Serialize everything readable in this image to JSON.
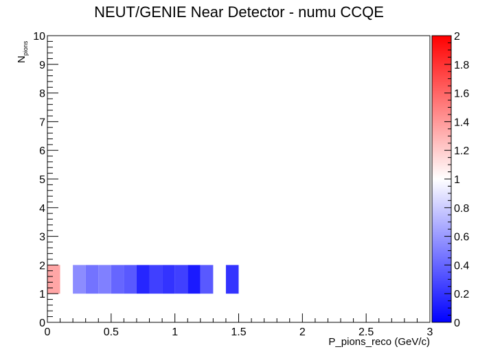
{
  "chart_data": {
    "type": "heatmap",
    "title": "NEUT/GENIE Near Detector - numu CCQE",
    "xlabel": "P_pions_reco (GeV/c)",
    "ylabel": {
      "base": "N",
      "subscript": "pions"
    },
    "xlim": [
      0,
      3
    ],
    "ylim": [
      0,
      10
    ],
    "x_ticks": [
      "0",
      "0.5",
      "1",
      "1.5",
      "2",
      "2.5",
      "3"
    ],
    "y_ticks": [
      "0",
      "1",
      "2",
      "3",
      "4",
      "5",
      "6",
      "7",
      "8",
      "9",
      "10"
    ],
    "z_range": [
      0,
      2
    ],
    "colorbar_ticks": [
      "0",
      "0.2",
      "0.4",
      "0.6",
      "0.8",
      "1",
      "1.2",
      "1.4",
      "1.6",
      "1.8",
      "2"
    ],
    "colormap": {
      "low": "#0000ff",
      "mid": "#ffffff",
      "high": "#ff0000"
    },
    "bin_width_x": 0.1,
    "bins": [
      {
        "x0": 0.0,
        "x1": 0.1,
        "y0": 1,
        "y1": 2,
        "z": 1.35
      },
      {
        "x0": 0.2,
        "x1": 0.3,
        "y0": 1,
        "y1": 2,
        "z": 0.55
      },
      {
        "x0": 0.3,
        "x1": 0.4,
        "y0": 1,
        "y1": 2,
        "z": 0.45
      },
      {
        "x0": 0.4,
        "x1": 0.5,
        "y0": 1,
        "y1": 2,
        "z": 0.5
      },
      {
        "x0": 0.5,
        "x1": 0.6,
        "y0": 1,
        "y1": 2,
        "z": 0.4
      },
      {
        "x0": 0.6,
        "x1": 0.7,
        "y0": 1,
        "y1": 2,
        "z": 0.35
      },
      {
        "x0": 0.7,
        "x1": 0.8,
        "y0": 1,
        "y1": 2,
        "z": 0.15
      },
      {
        "x0": 0.8,
        "x1": 0.9,
        "y0": 1,
        "y1": 2,
        "z": 0.25
      },
      {
        "x0": 0.9,
        "x1": 1.0,
        "y0": 1,
        "y1": 2,
        "z": 0.2
      },
      {
        "x0": 1.0,
        "x1": 1.1,
        "y0": 1,
        "y1": 2,
        "z": 0.25
      },
      {
        "x0": 1.1,
        "x1": 1.2,
        "y0": 1,
        "y1": 2,
        "z": 0.1
      },
      {
        "x0": 1.2,
        "x1": 1.3,
        "y0": 1,
        "y1": 2,
        "z": 0.35
      },
      {
        "x0": 1.4,
        "x1": 1.5,
        "y0": 1,
        "y1": 2,
        "z": 0.2
      }
    ]
  }
}
